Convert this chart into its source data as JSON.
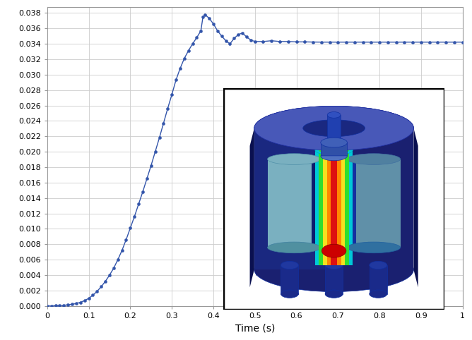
{
  "title": "",
  "xlabel": "Time (s)",
  "ylabel": "",
  "xlim": [
    0,
    1.0
  ],
  "ylim": [
    0,
    0.0388
  ],
  "yticks": [
    0,
    0.002,
    0.004,
    0.006,
    0.008,
    0.01,
    0.012,
    0.014,
    0.016,
    0.018,
    0.02,
    0.022,
    0.024,
    0.026,
    0.028,
    0.03,
    0.032,
    0.034,
    0.036,
    0.038
  ],
  "xticks": [
    0,
    0.1,
    0.2,
    0.3,
    0.4,
    0.5,
    0.6,
    0.7,
    0.8,
    0.9,
    1.0
  ],
  "line_color": "#3355aa",
  "marker": "o",
  "marker_size": 3.0,
  "linewidth": 1.0,
  "background_color": "#ffffff",
  "grid_color": "#cccccc",
  "time": [
    0.0,
    0.01,
    0.02,
    0.03,
    0.04,
    0.05,
    0.06,
    0.07,
    0.08,
    0.09,
    0.1,
    0.11,
    0.12,
    0.13,
    0.14,
    0.15,
    0.16,
    0.17,
    0.18,
    0.19,
    0.2,
    0.21,
    0.22,
    0.23,
    0.24,
    0.25,
    0.26,
    0.27,
    0.28,
    0.29,
    0.3,
    0.31,
    0.32,
    0.33,
    0.34,
    0.35,
    0.36,
    0.37,
    0.375,
    0.38,
    0.39,
    0.4,
    0.41,
    0.42,
    0.43,
    0.44,
    0.45,
    0.46,
    0.47,
    0.48,
    0.49,
    0.5,
    0.52,
    0.54,
    0.56,
    0.58,
    0.6,
    0.62,
    0.64,
    0.66,
    0.68,
    0.7,
    0.72,
    0.74,
    0.76,
    0.78,
    0.8,
    0.82,
    0.84,
    0.86,
    0.88,
    0.9,
    0.92,
    0.94,
    0.96,
    0.98,
    1.0
  ],
  "displacement": [
    0.0,
    2e-05,
    4e-05,
    7e-05,
    0.0001,
    0.00015,
    0.00022,
    0.00032,
    0.00048,
    0.0007,
    0.001,
    0.0014,
    0.0019,
    0.0025,
    0.0032,
    0.004,
    0.0049,
    0.006,
    0.0072,
    0.0086,
    0.0101,
    0.0116,
    0.0132,
    0.0148,
    0.0165,
    0.0182,
    0.02,
    0.0218,
    0.0237,
    0.0256,
    0.0274,
    0.0293,
    0.0308,
    0.0321,
    0.0331,
    0.034,
    0.0348,
    0.0357,
    0.0375,
    0.0378,
    0.0373,
    0.0366,
    0.0357,
    0.035,
    0.0344,
    0.034,
    0.0347,
    0.0352,
    0.0354,
    0.0349,
    0.0345,
    0.0343,
    0.0343,
    0.0344,
    0.0343,
    0.0343,
    0.03425,
    0.03425,
    0.03423,
    0.03422,
    0.03422,
    0.03422,
    0.03422,
    0.03422,
    0.03422,
    0.03422,
    0.03422,
    0.03422,
    0.03422,
    0.03422,
    0.03422,
    0.03422,
    0.03422,
    0.03422,
    0.03422,
    0.03422,
    0.03422
  ]
}
